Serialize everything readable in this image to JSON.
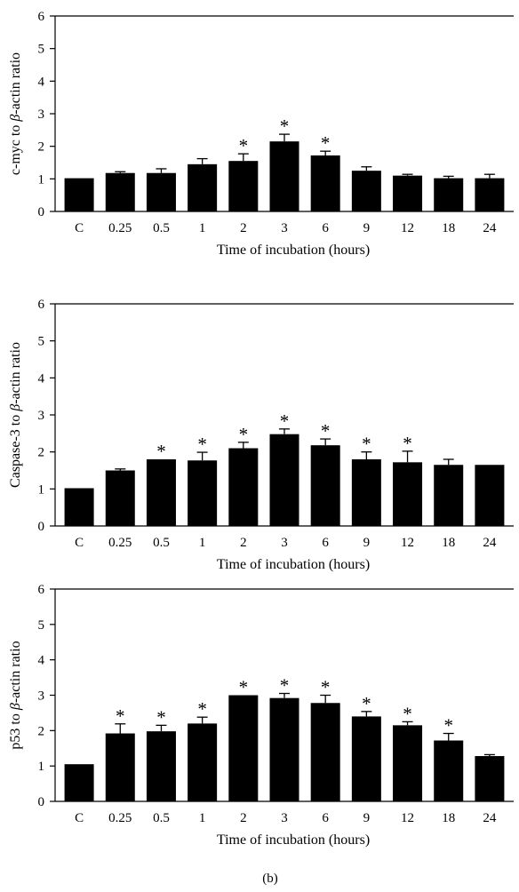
{
  "figure": {
    "label": "(b)"
  },
  "chart_data": [
    {
      "type": "bar",
      "title": "",
      "xlabel": "Time of incubation (hours)",
      "ylabel_prefix": "c-myc to ",
      "ylabel_symbol": "β",
      "ylabel_suffix": "-actin ratio",
      "ylim": [
        0,
        6
      ],
      "yticks": [
        "0",
        "1",
        "2",
        "3",
        "4",
        "5",
        "6"
      ],
      "categories": [
        "C",
        "0.25",
        "0.5",
        "1",
        "2",
        "3",
        "6",
        "9",
        "12",
        "18",
        "24"
      ],
      "values": [
        1.02,
        1.18,
        1.18,
        1.45,
        1.55,
        2.15,
        1.72,
        1.25,
        1.1,
        1.02,
        1.02
      ],
      "errors": [
        0,
        0.04,
        0.13,
        0.17,
        0.22,
        0.22,
        0.13,
        0.12,
        0.04,
        0.06,
        0.12
      ],
      "significant": [
        false,
        false,
        false,
        false,
        true,
        true,
        true,
        false,
        false,
        false,
        false
      ],
      "star_symbol": "*",
      "color": "#000000"
    },
    {
      "type": "bar",
      "title": "",
      "xlabel": "Time of incubation (hours)",
      "ylabel_prefix": "Caspase-3 to ",
      "ylabel_symbol": "β",
      "ylabel_suffix": "-actin ratio",
      "ylim": [
        0,
        6
      ],
      "yticks": [
        "0",
        "1",
        "2",
        "3",
        "4",
        "5",
        "6"
      ],
      "categories": [
        "C",
        "0.25",
        "0.5",
        "1",
        "2",
        "3",
        "6",
        "9",
        "12",
        "18",
        "24"
      ],
      "values": [
        1.02,
        1.5,
        1.8,
        1.77,
        2.1,
        2.48,
        2.18,
        1.8,
        1.72,
        1.65,
        1.65
      ],
      "errors": [
        0,
        0.04,
        0,
        0.22,
        0.16,
        0.14,
        0.17,
        0.2,
        0.3,
        0.15,
        0
      ],
      "significant": [
        false,
        false,
        true,
        true,
        true,
        true,
        true,
        true,
        true,
        false,
        false
      ],
      "star_symbol": "*",
      "color": "#000000"
    },
    {
      "type": "bar",
      "title": "",
      "xlabel": "Time of incubation (hours)",
      "ylabel_prefix": "p53 to ",
      "ylabel_symbol": "β",
      "ylabel_suffix": "-actin ratio",
      "ylim": [
        0,
        6
      ],
      "yticks": [
        "0",
        "1",
        "2",
        "3",
        "4",
        "5",
        "6"
      ],
      "categories": [
        "C",
        "0.25",
        "0.5",
        "1",
        "2",
        "3",
        "6",
        "9",
        "12",
        "18",
        "24"
      ],
      "values": [
        1.05,
        1.92,
        1.98,
        2.2,
        3.0,
        2.92,
        2.78,
        2.4,
        2.15,
        1.72,
        1.28
      ],
      "errors": [
        0,
        0.27,
        0.17,
        0.18,
        0,
        0.13,
        0.22,
        0.14,
        0.1,
        0.2,
        0.04
      ],
      "significant": [
        false,
        true,
        true,
        true,
        true,
        true,
        true,
        true,
        true,
        true,
        false
      ],
      "star_symbol": "*",
      "color": "#000000"
    }
  ]
}
